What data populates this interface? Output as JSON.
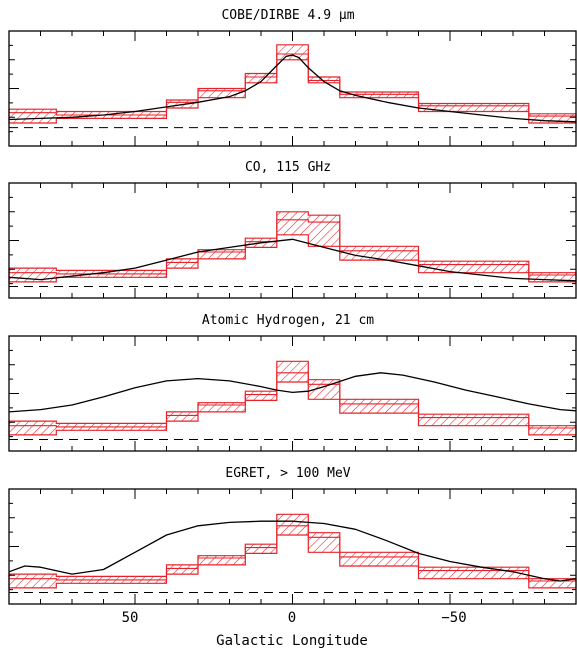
{
  "figure": {
    "xlabel": "Galactic Longitude",
    "xticks": [
      "50",
      "0",
      "−50"
    ]
  },
  "colors": {
    "model_band": "#e8222a",
    "observed_line": "#000000",
    "baseline": "#000000"
  },
  "chart_data": [
    {
      "type": "line",
      "title": "COBE/DIRBE 4.9 μm",
      "xlim": [
        90,
        -90
      ],
      "x_reversed": true,
      "ylim": [
        0,
        1
      ],
      "baseline": 0.16,
      "band_x": [
        90,
        75,
        75,
        40,
        40,
        30,
        30,
        15,
        15,
        5,
        5,
        -5,
        -5,
        -15,
        -15,
        -40,
        -40,
        -75,
        -75,
        -90
      ],
      "band_low": [
        0.2,
        0.2,
        0.24,
        0.24,
        0.33,
        0.33,
        0.42,
        0.42,
        0.55,
        0.55,
        0.75,
        0.75,
        0.55,
        0.55,
        0.42,
        0.42,
        0.3,
        0.3,
        0.2,
        0.2
      ],
      "band_high": [
        0.32,
        0.32,
        0.3,
        0.3,
        0.4,
        0.4,
        0.5,
        0.5,
        0.63,
        0.63,
        0.88,
        0.88,
        0.6,
        0.6,
        0.47,
        0.47,
        0.37,
        0.37,
        0.28,
        0.28
      ],
      "band_step_high": [
        0.29,
        0.29,
        0.27,
        0.27,
        0.38,
        0.38,
        0.48,
        0.48,
        0.6,
        0.6,
        0.8,
        0.8,
        0.57,
        0.57,
        0.45,
        0.45,
        0.35,
        0.35,
        0.26,
        0.26
      ],
      "observed_x": [
        90,
        80,
        70,
        60,
        50,
        40,
        30,
        20,
        15,
        10,
        5,
        2,
        0,
        -2,
        -5,
        -10,
        -15,
        -20,
        -30,
        -40,
        -50,
        -60,
        -70,
        -80,
        -90
      ],
      "observed_y": [
        0.23,
        0.24,
        0.25,
        0.27,
        0.3,
        0.34,
        0.38,
        0.43,
        0.48,
        0.56,
        0.7,
        0.78,
        0.79,
        0.77,
        0.68,
        0.56,
        0.48,
        0.44,
        0.38,
        0.33,
        0.3,
        0.27,
        0.24,
        0.22,
        0.21
      ]
    },
    {
      "type": "line",
      "title": "CO, 115 GHz",
      "xlim": [
        90,
        -90
      ],
      "x_reversed": true,
      "ylim": [
        0,
        1
      ],
      "baseline": 0.1,
      "band_x": [
        90,
        75,
        75,
        40,
        40,
        30,
        30,
        15,
        15,
        5,
        5,
        -5,
        -5,
        -15,
        -15,
        -40,
        -40,
        -75,
        -75,
        -90
      ],
      "band_low": [
        0.14,
        0.14,
        0.18,
        0.18,
        0.26,
        0.26,
        0.34,
        0.34,
        0.44,
        0.44,
        0.55,
        0.55,
        0.45,
        0.45,
        0.33,
        0.33,
        0.22,
        0.22,
        0.14,
        0.14
      ],
      "band_high": [
        0.26,
        0.26,
        0.24,
        0.24,
        0.34,
        0.34,
        0.42,
        0.42,
        0.52,
        0.52,
        0.75,
        0.75,
        0.72,
        0.72,
        0.45,
        0.45,
        0.32,
        0.32,
        0.22,
        0.22
      ],
      "band_step_high": [
        0.22,
        0.22,
        0.21,
        0.21,
        0.31,
        0.31,
        0.4,
        0.4,
        0.49,
        0.49,
        0.68,
        0.68,
        0.66,
        0.66,
        0.41,
        0.41,
        0.29,
        0.29,
        0.2,
        0.2
      ],
      "observed_x": [
        90,
        80,
        70,
        60,
        50,
        40,
        30,
        20,
        10,
        0,
        -10,
        -20,
        -30,
        -40,
        -50,
        -60,
        -70,
        -80,
        -90
      ],
      "observed_y": [
        0.18,
        0.16,
        0.19,
        0.22,
        0.26,
        0.33,
        0.4,
        0.44,
        0.48,
        0.51,
        0.44,
        0.37,
        0.33,
        0.28,
        0.23,
        0.2,
        0.17,
        0.16,
        0.15
      ]
    },
    {
      "type": "line",
      "title": "Atomic Hydrogen, 21 cm",
      "xlim": [
        90,
        -90
      ],
      "x_reversed": true,
      "ylim": [
        0,
        1
      ],
      "baseline": 0.1,
      "band_x": [
        90,
        75,
        75,
        40,
        40,
        30,
        30,
        15,
        15,
        5,
        5,
        -5,
        -5,
        -15,
        -15,
        -40,
        -40,
        -75,
        -75,
        -90
      ],
      "band_low": [
        0.14,
        0.14,
        0.18,
        0.18,
        0.26,
        0.26,
        0.34,
        0.34,
        0.44,
        0.44,
        0.6,
        0.6,
        0.45,
        0.45,
        0.33,
        0.33,
        0.22,
        0.22,
        0.14,
        0.14
      ],
      "band_high": [
        0.26,
        0.26,
        0.24,
        0.24,
        0.34,
        0.34,
        0.42,
        0.42,
        0.52,
        0.52,
        0.78,
        0.78,
        0.62,
        0.62,
        0.45,
        0.45,
        0.32,
        0.32,
        0.22,
        0.22
      ],
      "band_step_high": [
        0.22,
        0.22,
        0.21,
        0.21,
        0.31,
        0.31,
        0.4,
        0.4,
        0.49,
        0.49,
        0.68,
        0.68,
        0.58,
        0.58,
        0.41,
        0.41,
        0.29,
        0.29,
        0.2,
        0.2
      ],
      "observed_x": [
        90,
        80,
        70,
        60,
        50,
        40,
        30,
        20,
        10,
        5,
        0,
        -5,
        -10,
        -20,
        -28,
        -35,
        -45,
        -55,
        -65,
        -75,
        -85,
        -90
      ],
      "observed_y": [
        0.34,
        0.36,
        0.4,
        0.47,
        0.55,
        0.61,
        0.63,
        0.61,
        0.56,
        0.53,
        0.51,
        0.52,
        0.56,
        0.65,
        0.68,
        0.66,
        0.6,
        0.53,
        0.47,
        0.41,
        0.36,
        0.35
      ]
    },
    {
      "type": "line",
      "title": "EGRET, > 100 MeV",
      "xlim": [
        90,
        -90
      ],
      "x_reversed": true,
      "ylim": [
        0,
        1
      ],
      "baseline": 0.1,
      "band_x": [
        90,
        75,
        75,
        40,
        40,
        30,
        30,
        15,
        15,
        5,
        5,
        -5,
        -5,
        -15,
        -15,
        -40,
        -40,
        -75,
        -75,
        -90
      ],
      "band_low": [
        0.14,
        0.14,
        0.18,
        0.18,
        0.26,
        0.26,
        0.34,
        0.34,
        0.44,
        0.44,
        0.6,
        0.6,
        0.45,
        0.45,
        0.33,
        0.33,
        0.22,
        0.22,
        0.14,
        0.14
      ],
      "band_high": [
        0.26,
        0.26,
        0.24,
        0.24,
        0.34,
        0.34,
        0.42,
        0.42,
        0.52,
        0.52,
        0.78,
        0.78,
        0.62,
        0.62,
        0.45,
        0.45,
        0.32,
        0.32,
        0.22,
        0.22
      ],
      "band_step_high": [
        0.22,
        0.22,
        0.21,
        0.21,
        0.31,
        0.31,
        0.4,
        0.4,
        0.49,
        0.49,
        0.68,
        0.68,
        0.58,
        0.58,
        0.41,
        0.41,
        0.29,
        0.29,
        0.2,
        0.2
      ],
      "observed_x": [
        90,
        85,
        80,
        70,
        60,
        50,
        40,
        30,
        20,
        10,
        5,
        0,
        -5,
        -10,
        -20,
        -30,
        -40,
        -50,
        -60,
        -70,
        -80,
        -85,
        -90
      ],
      "observed_y": [
        0.28,
        0.33,
        0.32,
        0.26,
        0.3,
        0.45,
        0.6,
        0.68,
        0.71,
        0.72,
        0.72,
        0.72,
        0.71,
        0.7,
        0.65,
        0.55,
        0.44,
        0.37,
        0.32,
        0.28,
        0.22,
        0.2,
        0.22
      ]
    }
  ]
}
